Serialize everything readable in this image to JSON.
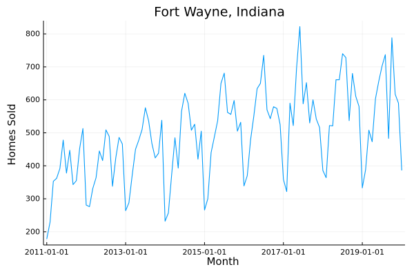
{
  "chart_data": {
    "type": "line",
    "title": "Fort Wayne, Indiana",
    "xlabel": "Month",
    "ylabel": "Homes Sold",
    "x_start": "2011-01",
    "x_end": "2020-01",
    "xlim": [
      "2010-12",
      "2020-02"
    ],
    "ylim": [
      160,
      840
    ],
    "x_ticks": [
      "2011-01-01",
      "2013-01-01",
      "2015-01-01",
      "2017-01-01",
      "2019-01-01"
    ],
    "y_ticks": [
      200,
      300,
      400,
      500,
      600,
      700,
      800
    ],
    "grid": true,
    "legend": "none",
    "series": [
      {
        "color": "#009af9",
        "values": [
          178,
          229,
          353,
          362,
          392,
          478,
          378,
          447,
          343,
          355,
          452,
          513,
          281,
          276,
          331,
          364,
          445,
          416,
          509,
          489,
          338,
          424,
          486,
          466,
          264,
          288,
          372,
          450,
          478,
          510,
          576,
          536,
          467,
          424,
          438,
          538,
          232,
          257,
          373,
          485,
          393,
          565,
          620,
          590,
          508,
          526,
          420,
          505,
          266,
          300,
          440,
          488,
          537,
          650,
          681,
          562,
          556,
          598,
          505,
          532,
          339,
          370,
          478,
          551,
          634,
          650,
          735,
          570,
          543,
          579,
          574,
          525,
          359,
          322,
          590,
          522,
          696,
          822,
          588,
          652,
          530,
          600,
          542,
          516,
          386,
          364,
          522,
          521,
          661,
          661,
          740,
          728,
          537,
          680,
          611,
          580,
          333,
          388,
          508,
          473,
          603,
          656,
          702,
          737,
          483,
          788,
          617,
          590,
          386
        ]
      }
    ]
  }
}
